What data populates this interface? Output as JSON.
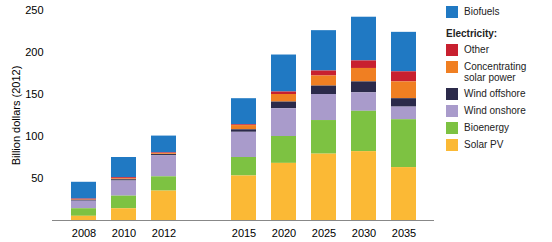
{
  "chart_data": {
    "type": "bar",
    "stacked": true,
    "grid": false,
    "legend": "right",
    "y_label": "Billion dollars (2012)",
    "legend_heading": "Electricity:",
    "categories": [
      "2008",
      "2010",
      "2012",
      null,
      "2015",
      "2020",
      "2025",
      "2030",
      "2035"
    ],
    "ylim": [
      0,
      250
    ],
    "yticks": [
      50,
      100,
      150,
      200,
      250
    ],
    "series": [
      {
        "name": "Biofuels",
        "color": "#2079c3",
        "values": [
          20,
          24,
          20,
          null,
          31,
          44,
          48,
          52,
          47
        ]
      },
      {
        "name": "Other",
        "color": "#c8202f",
        "values": [
          1,
          1.5,
          1,
          null,
          1,
          3,
          6,
          9,
          12
        ]
      },
      {
        "name": "Concentrating solar power",
        "color": "#f07f22",
        "values": [
          0.5,
          1,
          1,
          null,
          5,
          9,
          12,
          16,
          20
        ]
      },
      {
        "name": "Wind offshore",
        "color": "#2b2a4a",
        "values": [
          1,
          1.5,
          1.5,
          null,
          3,
          8,
          10,
          13,
          10
        ]
      },
      {
        "name": "Wind onshore",
        "color": "#a99bcb",
        "values": [
          9,
          18,
          25,
          null,
          30,
          33,
          31,
          22,
          15
        ]
      },
      {
        "name": "Bioenergy",
        "color": "#7dc242",
        "values": [
          9,
          15,
          17,
          null,
          22,
          32,
          40,
          48,
          57
        ]
      },
      {
        "name": "Solar PV",
        "color": "#fbb935",
        "values": [
          5,
          14,
          35,
          null,
          53,
          68,
          79,
          82,
          63
        ]
      }
    ]
  }
}
